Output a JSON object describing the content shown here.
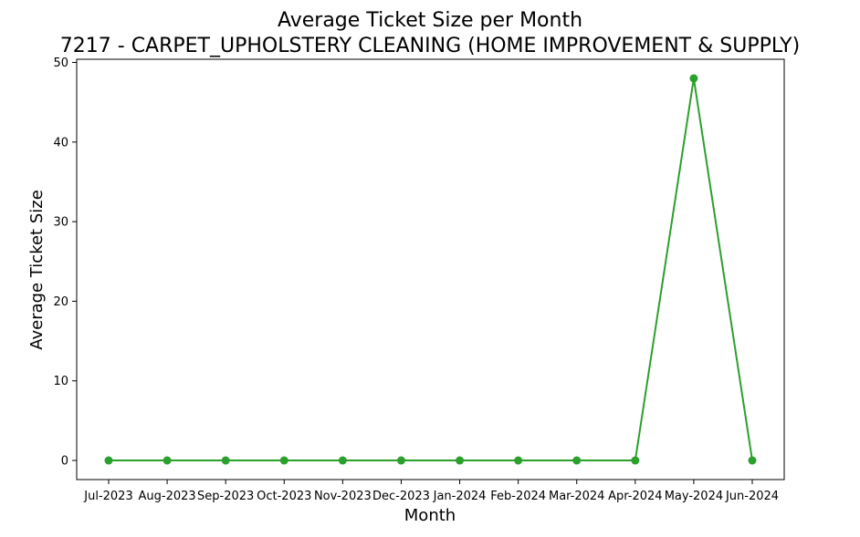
{
  "chart_data": {
    "type": "line",
    "title": "Average Ticket Size per Month",
    "subtitle": "7217 - CARPET_UPHOLSTERY CLEANING (HOME IMPROVEMENT & SUPPLY)",
    "xlabel": "Month",
    "ylabel": "Average Ticket Size",
    "categories": [
      "Jul-2023",
      "Aug-2023",
      "Sep-2023",
      "Oct-2023",
      "Nov-2023",
      "Dec-2023",
      "Jan-2024",
      "Feb-2024",
      "Mar-2024",
      "Apr-2024",
      "May-2024",
      "Jun-2024"
    ],
    "series": [
      {
        "values": [
          0,
          0,
          0,
          0,
          0,
          0,
          0,
          0,
          0,
          0,
          48,
          0
        ],
        "color": "#2ca02c",
        "marker": "circle"
      }
    ],
    "yticks": [
      0,
      10,
      20,
      30,
      40,
      50
    ],
    "ylim": [
      -2.4,
      50.4
    ],
    "grid": false,
    "legend": "none"
  }
}
